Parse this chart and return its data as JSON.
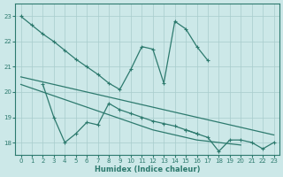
{
  "xlabel": "Humidex (Indice chaleur)",
  "background_color": "#cce8e8",
  "grid_color": "#a8cccc",
  "line_color": "#2d7a6e",
  "xlim": [
    -0.5,
    23.5
  ],
  "ylim": [
    17.5,
    23.5
  ],
  "yticks": [
    18,
    19,
    20,
    21,
    22,
    23
  ],
  "xticks": [
    0,
    1,
    2,
    3,
    4,
    5,
    6,
    7,
    8,
    9,
    10,
    11,
    12,
    13,
    14,
    15,
    16,
    17,
    18,
    19,
    20,
    21,
    22,
    23
  ],
  "series": [
    {
      "x": [
        0,
        1,
        2,
        3,
        4,
        5,
        6,
        7,
        8,
        9,
        10,
        11,
        12,
        13,
        14,
        15,
        16,
        17,
        18,
        19,
        20,
        21,
        22,
        23
      ],
      "y": [
        23.0,
        22.65,
        22.3,
        22.0,
        21.65,
        21.3,
        21.0,
        20.7,
        20.35,
        20.1,
        20.9,
        21.8,
        21.7,
        20.35,
        22.8,
        22.5,
        21.8,
        21.25,
        null,
        null,
        null,
        null,
        null,
        null
      ],
      "has_markers": true
    },
    {
      "x": [
        0,
        1,
        2,
        3,
        4,
        5,
        6,
        7,
        8,
        9,
        10,
        11,
        12,
        13,
        14,
        15,
        16,
        17,
        18,
        19,
        20,
        21,
        22,
        23
      ],
      "y": [
        20.3,
        20.15,
        20.0,
        19.85,
        19.7,
        19.55,
        19.4,
        19.25,
        19.1,
        18.95,
        18.8,
        18.65,
        18.5,
        18.4,
        18.3,
        18.2,
        18.1,
        18.05,
        18.0,
        17.95,
        17.9,
        null,
        null,
        null
      ],
      "has_markers": false
    },
    {
      "x": [
        0,
        23
      ],
      "y": [
        20.6,
        18.3
      ],
      "has_markers": false
    },
    {
      "x": [
        2,
        3,
        4,
        5,
        6,
        7,
        8,
        9,
        10,
        11,
        12,
        13,
        14,
        15,
        16,
        17,
        18,
        19,
        20,
        21,
        22,
        23
      ],
      "y": [
        20.3,
        19.0,
        18.0,
        18.35,
        18.8,
        18.7,
        19.55,
        19.3,
        19.15,
        19.0,
        18.85,
        18.75,
        18.65,
        18.5,
        18.35,
        null,
        null,
        null,
        null,
        null,
        null,
        null
      ],
      "has_markers": true
    },
    {
      "x": [
        15,
        16,
        17,
        18,
        19,
        20,
        21,
        22,
        23
      ],
      "y": [
        18.5,
        18.35,
        18.2,
        17.65,
        18.1,
        18.1,
        18.0,
        17.75,
        18.0
      ],
      "has_markers": true
    }
  ]
}
